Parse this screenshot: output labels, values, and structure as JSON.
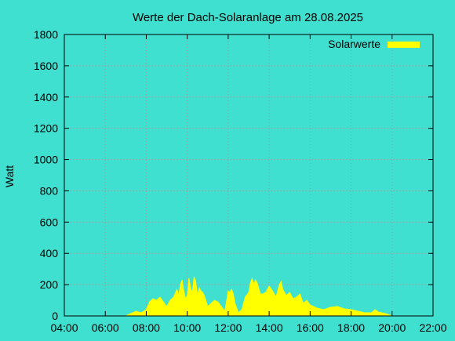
{
  "chart_data": {
    "type": "area",
    "title": "Werte der Dach-Solaranlage am 28.08.2025",
    "xlabel": "",
    "ylabel": "Watt",
    "x_tick_labels": [
      "04:00",
      "06:00",
      "08:00",
      "10:00",
      "12:00",
      "14:00",
      "16:00",
      "18:00",
      "20:00",
      "22:00"
    ],
    "y_tick_labels": [
      "0",
      "200",
      "400",
      "600",
      "800",
      "1000",
      "1200",
      "1400",
      "1600",
      "1800"
    ],
    "xlim": [
      "04:00",
      "22:00"
    ],
    "ylim": [
      0,
      1800
    ],
    "grid": true,
    "legend_position": "top-right",
    "series": [
      {
        "name": "Solarwerte",
        "color": "#FFFF00",
        "x": [
          "07:00",
          "07:15",
          "07:30",
          "07:45",
          "08:00",
          "08:10",
          "08:20",
          "08:30",
          "08:40",
          "08:50",
          "09:00",
          "09:10",
          "09:20",
          "09:30",
          "09:35",
          "09:40",
          "09:45",
          "09:50",
          "09:55",
          "10:00",
          "10:05",
          "10:10",
          "10:15",
          "10:20",
          "10:25",
          "10:30",
          "10:35",
          "10:40",
          "10:45",
          "10:50",
          "11:00",
          "11:10",
          "11:20",
          "11:30",
          "11:40",
          "11:50",
          "11:55",
          "12:00",
          "12:05",
          "12:10",
          "12:15",
          "12:20",
          "12:30",
          "12:40",
          "12:50",
          "13:00",
          "13:05",
          "13:10",
          "13:15",
          "13:20",
          "13:25",
          "13:30",
          "13:35",
          "13:40",
          "13:50",
          "14:00",
          "14:10",
          "14:20",
          "14:30",
          "14:35",
          "14:40",
          "14:50",
          "15:00",
          "15:10",
          "15:20",
          "15:30",
          "15:40",
          "15:50",
          "16:00",
          "16:10",
          "16:20",
          "16:40",
          "17:00",
          "17:20",
          "17:40",
          "18:00",
          "18:20",
          "18:40",
          "19:00",
          "19:10",
          "19:20",
          "19:40",
          "20:00"
        ],
        "y": [
          0,
          15,
          30,
          20,
          40,
          90,
          110,
          100,
          120,
          90,
          60,
          100,
          120,
          170,
          130,
          200,
          230,
          160,
          110,
          130,
          240,
          180,
          150,
          250,
          220,
          130,
          180,
          160,
          150,
          130,
          60,
          80,
          100,
          90,
          60,
          30,
          90,
          160,
          150,
          170,
          140,
          80,
          20,
          40,
          120,
          150,
          210,
          240,
          200,
          230,
          210,
          170,
          140,
          140,
          150,
          190,
          160,
          120,
          200,
          220,
          170,
          130,
          150,
          110,
          120,
          140,
          80,
          100,
          70,
          60,
          50,
          40,
          55,
          60,
          45,
          40,
          30,
          20,
          20,
          40,
          25,
          15,
          0
        ]
      }
    ]
  }
}
